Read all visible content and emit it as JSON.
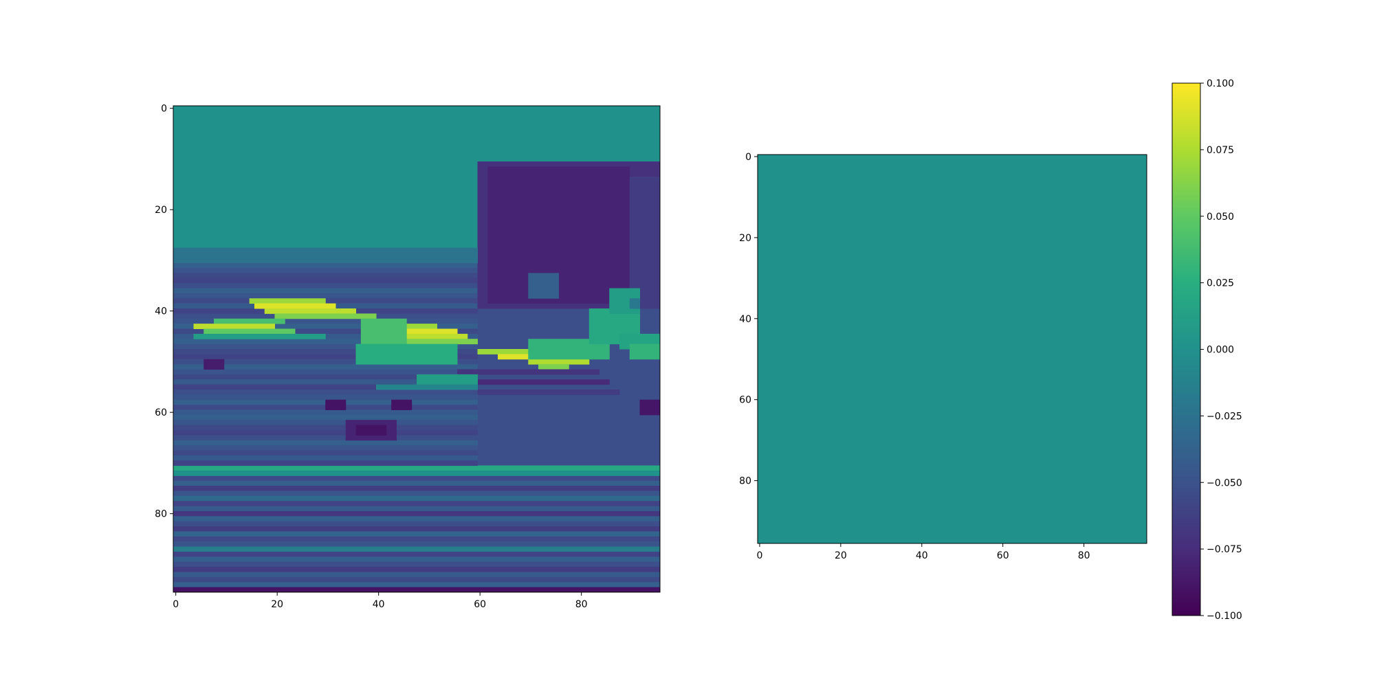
{
  "chart_data": [
    {
      "type": "heatmap",
      "title": "",
      "xlabel": "",
      "ylabel": "",
      "grid": false,
      "colormap": "viridis",
      "image_size": [
        96,
        96
      ],
      "xlim": [
        0,
        96
      ],
      "ylim": [
        96,
        0
      ],
      "xticks": [
        0,
        20,
        40,
        60,
        80
      ],
      "yticks": [
        0,
        20,
        40,
        60,
        80
      ],
      "xtick_labels": [
        "0",
        "20",
        "40",
        "60",
        "80"
      ],
      "ytick_labels": [
        "0",
        "20",
        "40",
        "60",
        "80"
      ],
      "content": "grayscale image of an airplane on a runway, shown with the viridis colormap",
      "image_regions": [
        {
          "rows": [
            0,
            30
          ],
          "cols": [
            0,
            96
          ],
          "level": 0.5
        },
        {
          "rows": [
            11,
            40
          ],
          "cols": [
            60,
            96
          ],
          "level": 0.14
        },
        {
          "rows": [
            30,
            72
          ],
          "cols": [
            0,
            96
          ],
          "level": 0.24
        },
        {
          "rows": [
            71,
            73
          ],
          "cols": [
            0,
            96
          ],
          "level": 0.55
        },
        {
          "rows": [
            73,
            96
          ],
          "cols": [
            0,
            96
          ],
          "level": 0.2
        }
      ]
    },
    {
      "type": "heatmap",
      "title": "",
      "xlabel": "",
      "ylabel": "",
      "grid": false,
      "colormap": "viridis",
      "image_size": [
        96,
        96
      ],
      "xlim": [
        0,
        96
      ],
      "ylim": [
        96,
        0
      ],
      "xticks": [
        0,
        20,
        40,
        60,
        80
      ],
      "yticks": [
        0,
        20,
        40,
        60,
        80
      ],
      "xtick_labels": [
        "0",
        "20",
        "40",
        "60",
        "80"
      ],
      "ytick_labels": [
        "0",
        "20",
        "40",
        "60",
        "80"
      ],
      "uniform_value": 0.0,
      "colorbar": {
        "min": -0.1,
        "max": 0.1,
        "ticks": [
          0.1,
          0.075,
          0.05,
          0.025,
          0.0,
          -0.025,
          -0.05,
          -0.075,
          -0.1
        ],
        "tick_labels": [
          "0.100",
          "0.075",
          "0.050",
          "0.025",
          "0.000",
          "−0.025",
          "−0.050",
          "−0.075",
          "−0.100"
        ]
      }
    }
  ]
}
